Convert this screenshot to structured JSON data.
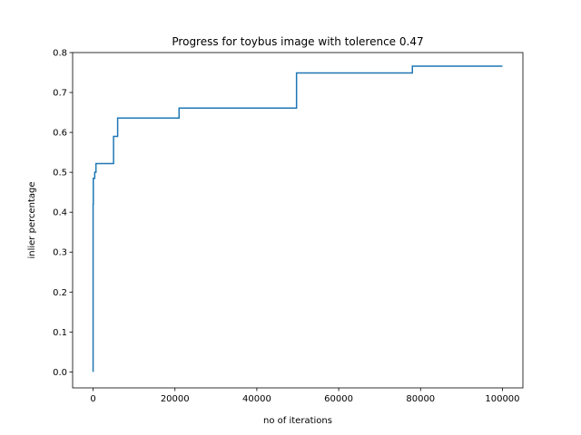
{
  "chart_data": {
    "type": "line",
    "title": "Progress for toybus image with tolerence 0.47",
    "xlabel": "no of iterations",
    "ylabel": "inlier percentage",
    "xlim": [
      -5000,
      105000
    ],
    "ylim": [
      -0.04,
      0.8
    ],
    "xticks": [
      0,
      20000,
      40000,
      60000,
      80000,
      100000
    ],
    "xtick_labels": [
      "0",
      "20000",
      "40000",
      "60000",
      "80000",
      "100000"
    ],
    "yticks": [
      0.0,
      0.1,
      0.2,
      0.3,
      0.4,
      0.5,
      0.6,
      0.7,
      0.8
    ],
    "ytick_labels": [
      "0.0",
      "0.1",
      "0.2",
      "0.3",
      "0.4",
      "0.5",
      "0.6",
      "0.7",
      "0.8"
    ],
    "grid": false,
    "legend": "none",
    "step": "post",
    "series": [
      {
        "color": "#1f77b4",
        "x": [
          0,
          1,
          50,
          200,
          400,
          700,
          5000,
          6000,
          21000,
          49700,
          78000,
          100000
        ],
        "y": [
          0.0,
          0.42,
          0.485,
          0.485,
          0.5,
          0.522,
          0.59,
          0.636,
          0.661,
          0.749,
          0.766,
          0.766
        ]
      }
    ]
  }
}
